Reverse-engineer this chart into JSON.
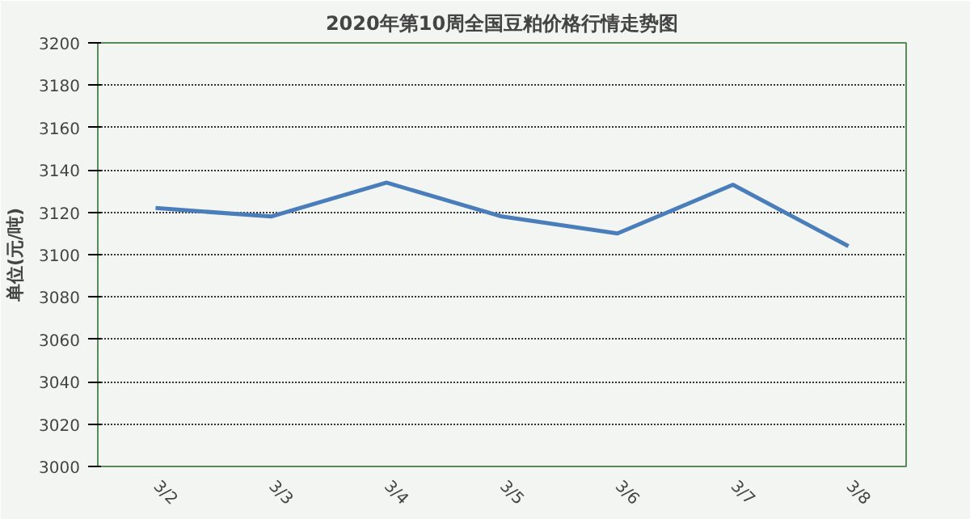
{
  "chart_data": {
    "type": "line",
    "title": "2020年第10周全国豆粕价格行情走势图",
    "ylabel": "单位(元/吨)",
    "categories": [
      "3/2",
      "3/3",
      "3/4",
      "3/5",
      "3/6",
      "3/7",
      "3/8"
    ],
    "series": [
      {
        "color": "#4a7ebb",
        "values": [
          3122,
          3118,
          3134,
          3118,
          3110,
          3133,
          3104
        ]
      }
    ],
    "ylim": [
      3000,
      3200
    ],
    "yticks": [
      3000,
      3020,
      3040,
      3060,
      3080,
      3100,
      3120,
      3140,
      3160,
      3180,
      3200
    ],
    "grid": "y",
    "marker": "none",
    "line_style": "solid"
  }
}
